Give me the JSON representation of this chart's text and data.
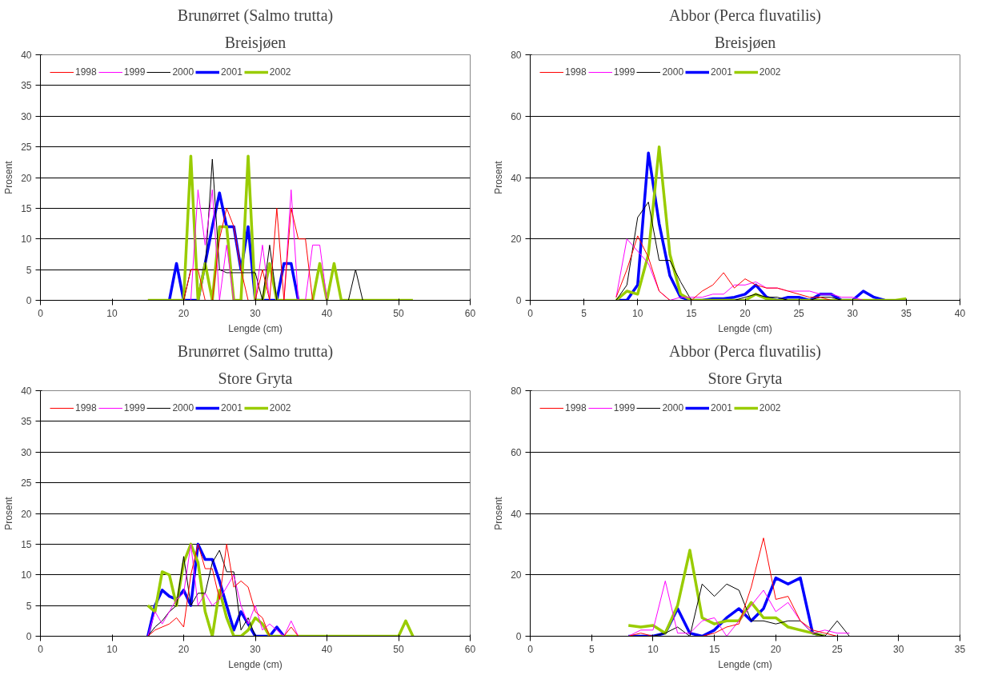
{
  "chart_data": [
    {
      "type": "line",
      "title": "Brunørret (Salmo trutta)",
      "subtitle": "Breisjøen",
      "xlabel": "Lengde (cm)",
      "ylabel": "Prosent",
      "xlim": [
        0,
        60
      ],
      "xticks": [
        0,
        10,
        20,
        30,
        40,
        50,
        60
      ],
      "ylim": [
        0,
        40
      ],
      "yticks": [
        0,
        5,
        10,
        15,
        20,
        25,
        30,
        35,
        40
      ],
      "grid": "y",
      "legend": "top left",
      "x": [
        15,
        16,
        17,
        18,
        19,
        20,
        21,
        22,
        23,
        24,
        25,
        26,
        27,
        28,
        29,
        30,
        31,
        32,
        33,
        34,
        35,
        36,
        37,
        38,
        39,
        40,
        41,
        42,
        43,
        44,
        45,
        46,
        47,
        48,
        49,
        50,
        51,
        52
      ],
      "series": [
        {
          "name": "1998",
          "color": "#ff0000",
          "values": [
            null,
            null,
            null,
            null,
            null,
            0,
            5,
            5,
            0,
            0,
            10,
            15,
            12,
            5,
            0,
            0,
            5,
            0,
            15,
            0,
            15,
            10,
            10,
            0,
            null,
            null,
            null,
            null,
            null,
            null,
            null,
            null,
            null,
            null,
            null,
            null,
            null,
            null
          ]
        },
        {
          "name": "1999",
          "color": "#ff00ff",
          "values": [
            null,
            null,
            null,
            null,
            null,
            null,
            0,
            18,
            9,
            18,
            0,
            9,
            0,
            0,
            0,
            0,
            9,
            0,
            0,
            0,
            18,
            0,
            0,
            9,
            9,
            0,
            null,
            null,
            null,
            null,
            null,
            null,
            null,
            null,
            null,
            null,
            null,
            null
          ]
        },
        {
          "name": "2000",
          "color": "#000000",
          "values": [
            null,
            null,
            null,
            null,
            null,
            0,
            5,
            5,
            5,
            23,
            5,
            4.5,
            4.5,
            4.5,
            4.5,
            4.5,
            0,
            9,
            0,
            0,
            0,
            0,
            0,
            0,
            0,
            0,
            0,
            0,
            0,
            5,
            0,
            null,
            null,
            null,
            null,
            null,
            null,
            null
          ]
        },
        {
          "name": "2001",
          "color": "#0000ff",
          "values": [
            null,
            null,
            null,
            0,
            6,
            0,
            0,
            0,
            6,
            12,
            17.5,
            12,
            12,
            5,
            12,
            0,
            0,
            0,
            0,
            6,
            6,
            0,
            null,
            null,
            null,
            null,
            null,
            null,
            null,
            null,
            null,
            null,
            null,
            null,
            null,
            null,
            null,
            null
          ]
        },
        {
          "name": "2002",
          "color": "#99cc00",
          "values": [
            0,
            0,
            0,
            0,
            0,
            0,
            23.5,
            0,
            6,
            0,
            12,
            12,
            0,
            0,
            23.5,
            0,
            0,
            6,
            0,
            0,
            0,
            0,
            0,
            0,
            6,
            0,
            6,
            0,
            0,
            0,
            0,
            0,
            0,
            0,
            0,
            0,
            0,
            0
          ]
        }
      ]
    },
    {
      "type": "line",
      "title": "Abbor (Perca fluvatilis)",
      "subtitle": "Breisjøen",
      "xlabel": "Lengde (cm)",
      "ylabel": "Prosent",
      "xlim": [
        0,
        40
      ],
      "xticks": [
        0,
        5,
        10,
        15,
        20,
        25,
        30,
        35,
        40
      ],
      "ylim": [
        0,
        80
      ],
      "yticks": [
        0,
        20,
        40,
        60,
        80
      ],
      "grid": "y",
      "legend": "top left",
      "x": [
        8,
        9,
        10,
        11,
        12,
        13,
        14,
        15,
        16,
        17,
        18,
        19,
        20,
        21,
        22,
        23,
        24,
        25,
        26,
        27,
        28,
        29,
        30,
        31,
        32,
        33,
        34,
        35
      ],
      "series": [
        {
          "name": "1998",
          "color": "#ff0000",
          "values": [
            1,
            10,
            21,
            14,
            3,
            0,
            0,
            0,
            3,
            5,
            9,
            4,
            7,
            5,
            4,
            4,
            3,
            2,
            1,
            1,
            0,
            null,
            null,
            null,
            null,
            null,
            null,
            null
          ]
        },
        {
          "name": "1999",
          "color": "#ff00ff",
          "values": [
            1,
            20,
            16,
            12,
            3,
            0,
            1,
            1,
            1,
            2,
            2,
            5,
            5,
            6,
            4,
            4,
            3,
            3,
            3,
            2,
            2,
            1,
            1,
            0,
            null,
            null,
            null,
            null
          ]
        },
        {
          "name": "2000",
          "color": "#000000",
          "values": [
            0,
            5,
            27,
            32,
            13,
            13,
            6,
            0,
            0,
            0,
            0,
            0,
            1,
            2,
            1,
            1,
            0,
            0,
            0,
            1,
            1,
            0,
            null,
            null,
            null,
            null,
            null,
            null
          ]
        },
        {
          "name": "2001",
          "color": "#0000ff",
          "values": [
            0,
            0,
            5,
            48,
            25,
            8,
            1,
            0,
            0,
            0.5,
            0.5,
            1,
            2,
            5,
            1,
            0,
            1,
            1,
            0,
            2,
            2,
            0,
            0,
            3,
            1,
            0,
            null,
            null
          ]
        },
        {
          "name": "2002",
          "color": "#99cc00",
          "values": [
            0,
            3,
            2,
            15,
            50,
            15,
            2,
            0,
            0,
            0,
            0,
            0,
            0,
            2,
            0.5,
            0,
            0,
            0,
            0,
            0,
            0,
            0,
            0,
            0,
            0,
            0,
            0,
            0.5
          ]
        }
      ]
    },
    {
      "type": "line",
      "title": "Brunørret (Salmo trutta)",
      "subtitle": "Store Gryta",
      "xlabel": "Lengde (cm)",
      "ylabel": "Prosent",
      "xlim": [
        0,
        60
      ],
      "xticks": [
        0,
        10,
        20,
        30,
        40,
        50,
        60
      ],
      "ylim": [
        0,
        40
      ],
      "yticks": [
        0,
        5,
        10,
        15,
        20,
        25,
        30,
        35,
        40
      ],
      "grid": "y",
      "legend": "top left",
      "x": [
        15,
        16,
        17,
        18,
        19,
        20,
        21,
        22,
        23,
        24,
        25,
        26,
        27,
        28,
        29,
        30,
        31,
        32,
        33,
        34,
        35,
        36,
        37,
        38,
        39,
        40,
        41,
        42,
        43,
        44,
        45,
        46,
        47,
        48,
        49,
        50,
        51,
        52
      ],
      "series": [
        {
          "name": "1998",
          "color": "#ff0000",
          "values": [
            0,
            1,
            1.5,
            2,
            3,
            1.5,
            10,
            15,
            11,
            11,
            6,
            15,
            8,
            9,
            8,
            4,
            3,
            0,
            0,
            0,
            1.5,
            0,
            null,
            null,
            null,
            null,
            null,
            null,
            null,
            null,
            null,
            null,
            null,
            null,
            null,
            null,
            null,
            null
          ]
        },
        {
          "name": "1999",
          "color": "#ff00ff",
          "values": [
            0,
            4,
            2,
            4,
            6,
            7,
            15,
            5,
            7,
            5,
            6,
            8,
            10,
            5,
            2,
            5,
            1,
            2,
            1,
            0,
            2.5,
            0,
            null,
            null,
            null,
            null,
            null,
            null,
            null,
            null,
            null,
            null,
            null,
            null,
            null,
            null,
            null,
            null
          ]
        },
        {
          "name": "2000",
          "color": "#000000",
          "values": [
            0,
            1.5,
            2.5,
            4,
            5,
            13,
            5,
            7,
            7,
            12,
            14,
            10.5,
            10.5,
            1,
            3,
            0,
            null,
            null,
            null,
            null,
            null,
            null,
            null,
            null,
            null,
            null,
            null,
            null,
            null,
            null,
            null,
            null,
            null,
            null,
            null,
            null,
            null,
            null
          ]
        },
        {
          "name": "2001",
          "color": "#0000ff",
          "values": [
            0,
            5,
            7.5,
            6.5,
            6,
            7.5,
            5,
            15,
            12.5,
            12.5,
            9,
            5,
            1,
            4,
            2,
            0,
            0,
            0,
            1.5,
            0,
            null,
            null,
            null,
            null,
            null,
            null,
            null,
            null,
            null,
            null,
            null,
            null,
            null,
            null,
            null,
            null,
            null,
            null
          ]
        },
        {
          "name": "2002",
          "color": "#99cc00",
          "values": [
            5,
            4,
            10.5,
            10,
            5,
            12,
            15,
            12,
            4,
            0,
            7.5,
            3,
            0,
            0,
            1,
            3,
            2,
            0,
            0,
            0,
            0,
            0,
            0,
            0,
            0,
            0,
            0,
            0,
            0,
            0,
            0,
            0,
            0,
            0,
            0,
            0,
            2.5,
            0
          ]
        }
      ]
    },
    {
      "type": "line",
      "title": "Abbor (Perca fluvatilis)",
      "subtitle": "Store Gryta",
      "xlabel": "Lengde (cm)",
      "ylabel": "Prosent",
      "xlim": [
        0,
        35
      ],
      "xticks": [
        0,
        5,
        10,
        15,
        20,
        25,
        30,
        35
      ],
      "ylim": [
        0,
        80
      ],
      "yticks": [
        0,
        20,
        40,
        60,
        80
      ],
      "grid": "y",
      "legend": "top left",
      "x": [
        8,
        9,
        10,
        11,
        12,
        13,
        14,
        15,
        16,
        17,
        18,
        19,
        20,
        21,
        22,
        23,
        24,
        25,
        26
      ],
      "series": [
        {
          "name": "1998",
          "color": "#ff0000",
          "values": [
            0,
            1,
            0,
            0,
            0,
            0,
            0,
            1,
            3,
            4,
            16,
            32,
            12,
            13,
            5,
            2,
            1,
            0,
            null
          ]
        },
        {
          "name": "1999",
          "color": "#ff00ff",
          "values": [
            0,
            2,
            2,
            18,
            1,
            1,
            5,
            6,
            0,
            5,
            10,
            15,
            8,
            11,
            5,
            1,
            2,
            1,
            1
          ]
        },
        {
          "name": "2000",
          "color": "#000000",
          "values": [
            0,
            0,
            0,
            1,
            3,
            0,
            17,
            13,
            17,
            15,
            5,
            5,
            4,
            5,
            5,
            1,
            0,
            5,
            0
          ]
        },
        {
          "name": "2001",
          "color": "#0000ff",
          "values": [
            0,
            0,
            0,
            1,
            9,
            1,
            0,
            2,
            6,
            9,
            5,
            9,
            19,
            17,
            19,
            1,
            0,
            null,
            null
          ]
        },
        {
          "name": "2002",
          "color": "#99cc00",
          "values": [
            3.5,
            3,
            3.5,
            1,
            10,
            28,
            6,
            4,
            5,
            5,
            11,
            6,
            6,
            3,
            2,
            1,
            0,
            null,
            null
          ]
        }
      ]
    }
  ]
}
